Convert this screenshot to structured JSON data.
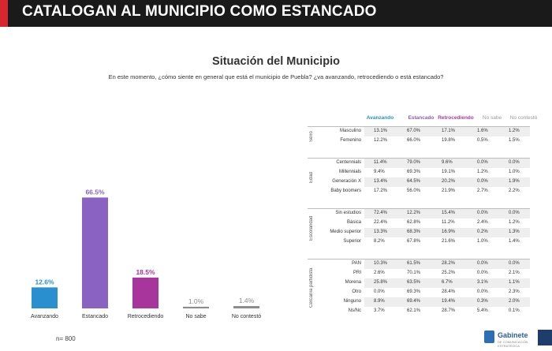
{
  "banner": {
    "title": "CATALOGAN AL MUNICIPIO COMO ESTANCADO"
  },
  "header": {
    "title": "Situación del Municipio",
    "question": "En este momento, ¿cómo siente en general que está el municipio de Puebla? ¿va avanzando, retrocediendo o está estancado?"
  },
  "sample": "n= 800",
  "chart_data": {
    "type": "bar",
    "categories": [
      "Avanzando",
      "Estancado",
      "Retrocediendo",
      "No sabe",
      "No contestó"
    ],
    "values": [
      12.6,
      66.5,
      18.5,
      1.0,
      1.4
    ],
    "value_labels": [
      "12.6%",
      "66.5%",
      "18.5%",
      "1.0%",
      "1.4%"
    ],
    "colors": [
      "#2a8fcf",
      "#8a63c2",
      "#a8359c",
      "#8c8c8c",
      "#8c8c8c"
    ],
    "ylim": [
      0,
      70
    ],
    "grid": false,
    "title": "",
    "xlabel": "",
    "ylabel": ""
  },
  "crosstab": {
    "columns": [
      "Avanzando",
      "Estancado",
      "Retrocediendo",
      "No sabe",
      "No contestó"
    ],
    "groups": [
      {
        "label": "Sexo",
        "rows": [
          {
            "label": "Masculino",
            "values": [
              "13.1%",
              "67.0%",
              "17.1%",
              "1.6%",
              "1.2%"
            ]
          },
          {
            "label": "Femenino",
            "values": [
              "12.2%",
              "66.0%",
              "19.8%",
              "0.5%",
              "1.5%"
            ]
          }
        ]
      },
      {
        "label": "Edad",
        "rows": [
          {
            "label": "Centennials",
            "values": [
              "11.4%",
              "79.0%",
              "9.6%",
              "0.0%",
              "0.0%"
            ]
          },
          {
            "label": "Millennials",
            "values": [
              "9.4%",
              "69.3%",
              "19.1%",
              "1.2%",
              "1.0%"
            ]
          },
          {
            "label": "Generación X",
            "values": [
              "13.4%",
              "64.5%",
              "20.2%",
              "0.0%",
              "1.9%"
            ]
          },
          {
            "label": "Baby boomers",
            "values": [
              "17.2%",
              "56.0%",
              "21.9%",
              "2.7%",
              "2.2%"
            ]
          }
        ]
      },
      {
        "label": "Escolaridad",
        "rows": [
          {
            "label": "Sin estudios",
            "values": [
              "72.4%",
              "12.2%",
              "15.4%",
              "0.0%",
              "0.0%"
            ]
          },
          {
            "label": "Básica",
            "values": [
              "22.4%",
              "62.8%",
              "11.2%",
              "2.4%",
              "1.2%"
            ]
          },
          {
            "label": "Medio superior",
            "values": [
              "13.3%",
              "68.3%",
              "16.9%",
              "0.2%",
              "1.3%"
            ]
          },
          {
            "label": "Superior",
            "values": [
              "8.2%",
              "67.8%",
              "21.6%",
              "1.0%",
              "1.4%"
            ]
          }
        ]
      },
      {
        "label": "Cercanía partidista",
        "rows": [
          {
            "label": "PAN",
            "values": [
              "10.3%",
              "61.5%",
              "28.2%",
              "0.0%",
              "0.0%"
            ]
          },
          {
            "label": "PRI",
            "values": [
              "2.6%",
              "70.1%",
              "25.2%",
              "0.0%",
              "2.1%"
            ]
          },
          {
            "label": "Morena",
            "values": [
              "25.8%",
              "63.5%",
              "6.7%",
              "3.1%",
              "1.1%"
            ]
          },
          {
            "label": "Otro",
            "values": [
              "0.0%",
              "69.3%",
              "28.4%",
              "0.0%",
              "2.3%"
            ]
          },
          {
            "label": "Ninguno",
            "values": [
              "8.9%",
              "69.4%",
              "19.4%",
              "0.3%",
              "2.0%"
            ]
          },
          {
            "label": "Ns/Nc",
            "values": [
              "3.7%",
              "62.1%",
              "28.7%",
              "5.4%",
              "0.1%"
            ]
          }
        ]
      }
    ]
  },
  "logo": {
    "word": "Gabinete",
    "sub": "DE COMUNICACIÓN ESTRATÉGICA"
  }
}
